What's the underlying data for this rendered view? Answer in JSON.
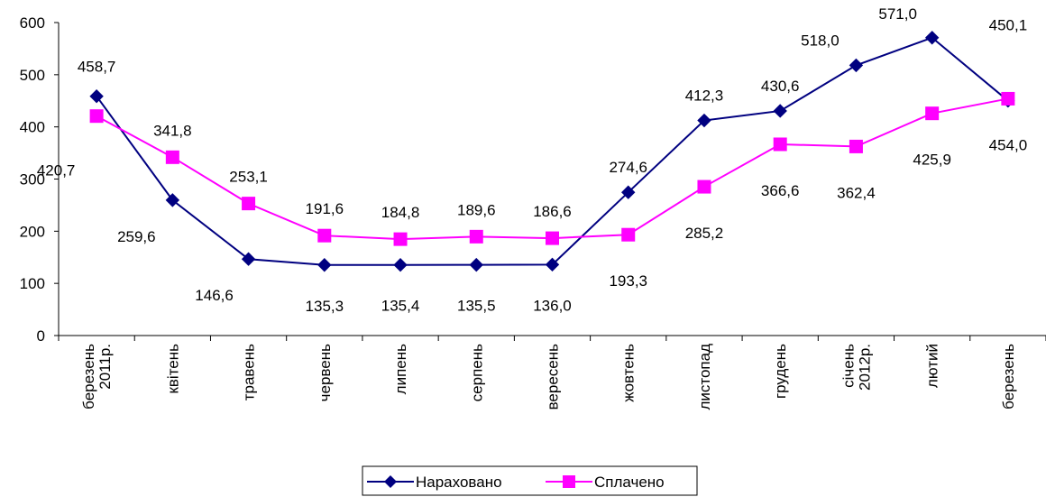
{
  "chart_data": {
    "type": "line",
    "ylim": [
      0,
      600
    ],
    "yticks": [
      0,
      100,
      200,
      300,
      400,
      500,
      600
    ],
    "categories": [
      [
        "березень",
        "2011р."
      ],
      [
        "квітень"
      ],
      [
        "травень"
      ],
      [
        "червень"
      ],
      [
        "липень"
      ],
      [
        "серпень"
      ],
      [
        "вересень"
      ],
      [
        "жовтень"
      ],
      [
        "листопад"
      ],
      [
        "грудень"
      ],
      [
        "січень",
        "2012р."
      ],
      [
        "лютий"
      ],
      [
        "березень"
      ]
    ],
    "legend_position": "bottom",
    "grid": false,
    "series": [
      {
        "name": "Нараховано",
        "color": "#000080",
        "marker": "diamond",
        "values": [
          458.7,
          259.6,
          146.6,
          135.3,
          135.4,
          135.5,
          136.0,
          274.6,
          412.3,
          430.6,
          518.0,
          571.0,
          450.1
        ],
        "labels": [
          "458,7",
          "259,6",
          "146,6",
          "135,3",
          "135,4",
          "135,5",
          "136,0",
          "274,6",
          "412,3",
          "430,6",
          "518,0",
          "571,0",
          "450,1"
        ]
      },
      {
        "name": "Сплачено",
        "color": "#FF00FF",
        "marker": "square",
        "values": [
          420.7,
          341.8,
          253.1,
          191.6,
          184.8,
          189.6,
          186.6,
          193.3,
          285.2,
          366.6,
          362.4,
          425.9,
          454.0
        ],
        "labels": [
          "420,7",
          "341,8",
          "253,1",
          "191,6",
          "184,8",
          "189,6",
          "186,6",
          "193,3",
          "285,2",
          "366,6",
          "362,4",
          "425,9",
          "454,0"
        ]
      }
    ]
  }
}
